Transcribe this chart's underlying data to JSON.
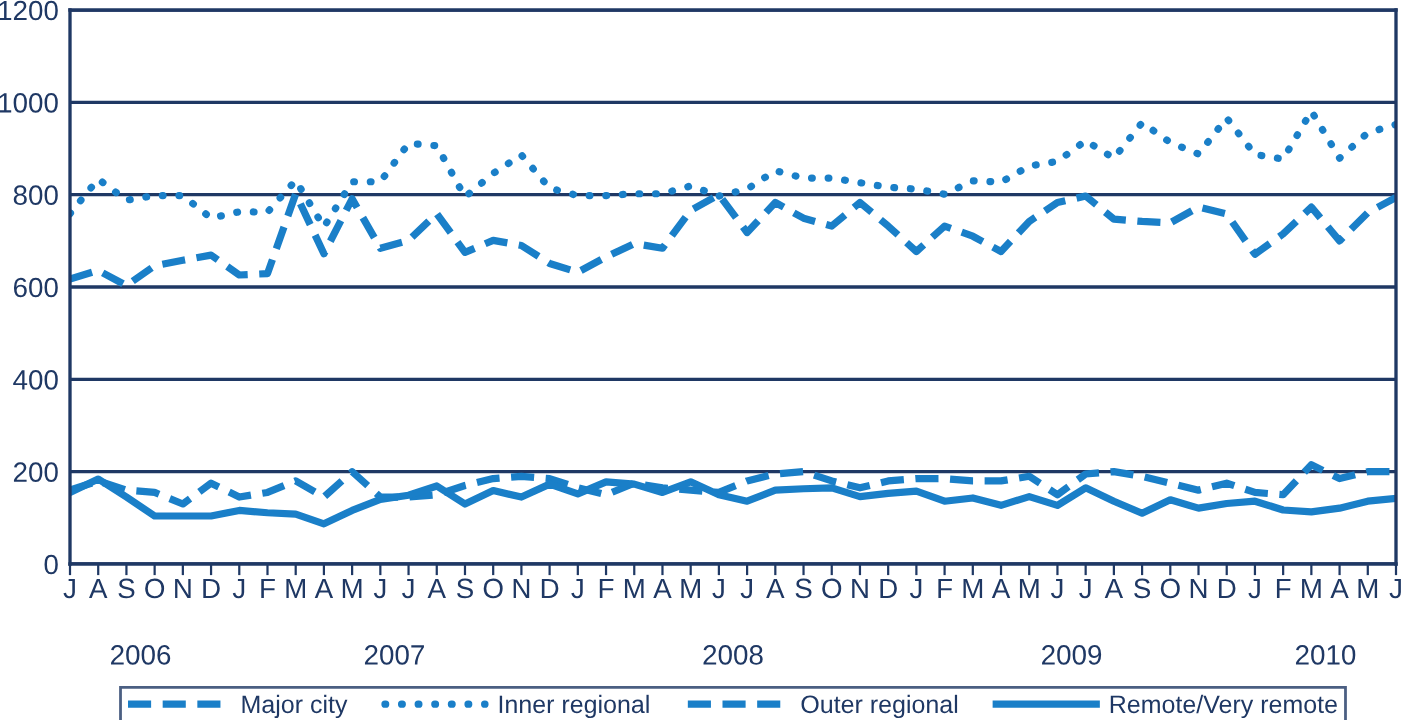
{
  "chart_data": {
    "type": "line",
    "categories": [
      "J",
      "A",
      "S",
      "O",
      "N",
      "D",
      "J",
      "F",
      "M",
      "A",
      "M",
      "J",
      "J",
      "A",
      "S",
      "O",
      "N",
      "D",
      "J",
      "F",
      "M",
      "A",
      "M",
      "J",
      "J",
      "A",
      "S",
      "O",
      "N",
      "D",
      "J",
      "F",
      "M",
      "A",
      "M",
      "J",
      "J",
      "A",
      "S",
      "O",
      "N",
      "D",
      "J",
      "F",
      "M",
      "A",
      "M",
      "J"
    ],
    "series": [
      {
        "name": "Major city",
        "color": "#1a7fc8",
        "line_style": "dashed",
        "values": [
          617,
          636,
          603,
          646,
          658,
          669,
          626,
          629,
          802,
          672,
          791,
          684,
          701,
          759,
          675,
          701,
          690,
          651,
          632,
          665,
          694,
          684,
          766,
          800,
          718,
          783,
          749,
          732,
          783,
          732,
          677,
          732,
          710,
          677,
          742,
          783,
          797,
          747,
          742,
          739,
          773,
          758,
          671,
          715,
          773,
          700,
          761,
          794
        ]
      },
      {
        "name": "Inner regional",
        "color": "#1a7fc8",
        "line_style": "dotted",
        "values": [
          759,
          834,
          788,
          798,
          798,
          749,
          763,
          762,
          831,
          730,
          828,
          828,
          911,
          906,
          795,
          846,
          886,
          814,
          798,
          798,
          802,
          802,
          819,
          797,
          812,
          852,
          836,
          836,
          826,
          816,
          812,
          801,
          830,
          827,
          862,
          872,
          917,
          879,
          956,
          913,
          888,
          966,
          887,
          877,
          981,
          879,
          934,
          952
        ]
      },
      {
        "name": "Outer regional",
        "color": "#1a7fc8",
        "line_style": "dashed",
        "values": [
          160,
          180,
          160,
          155,
          130,
          175,
          145,
          155,
          180,
          145,
          200,
          145,
          145,
          150,
          170,
          185,
          190,
          185,
          165,
          150,
          175,
          165,
          160,
          155,
          180,
          195,
          200,
          180,
          165,
          180,
          185,
          185,
          180,
          180,
          190,
          150,
          195,
          200,
          190,
          175,
          160,
          175,
          155,
          150,
          215,
          185,
          200,
          200
        ]
      },
      {
        "name": "Remote/Very remote",
        "color": "#1a7fc8",
        "line_style": "solid",
        "values": [
          155,
          184,
          145,
          104,
          104,
          104,
          116,
          111,
          108,
          87,
          116,
          140,
          149,
          169,
          130,
          159,
          145,
          173,
          152,
          178,
          173,
          155,
          178,
          150,
          136,
          160,
          163,
          165,
          146,
          153,
          158,
          136,
          143,
          127,
          146,
          127,
          165,
          136,
          110,
          139,
          121,
          131,
          136,
          117,
          113,
          121,
          136,
          142
        ]
      }
    ],
    "ylim": [
      0,
      1200
    ],
    "yticks": [
      0,
      200,
      400,
      600,
      800,
      1000,
      1200
    ],
    "grid": "y",
    "legend": "bottom",
    "annotations": [
      "2006",
      "2007",
      "2008",
      "2009",
      "2010"
    ]
  }
}
